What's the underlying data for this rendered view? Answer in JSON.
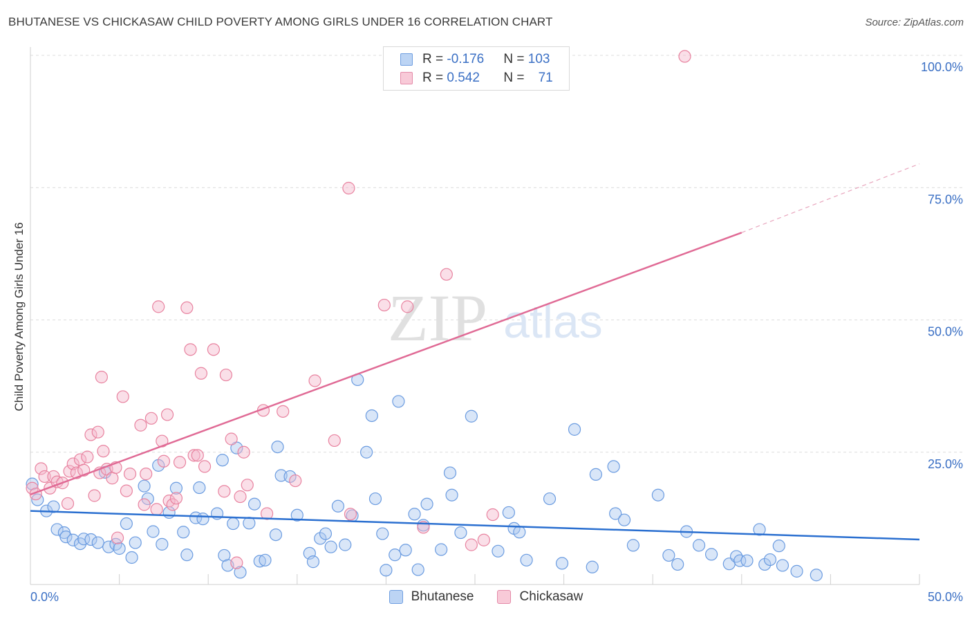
{
  "header": {
    "title": "BHUTANESE VS CHICKASAW CHILD POVERTY AMONG GIRLS UNDER 16 CORRELATION CHART",
    "source": "Source: ZipAtlas.com"
  },
  "legend": {
    "rows": [
      {
        "r_label": "R = ",
        "r_value": "-0.176",
        "n_label": "N = ",
        "n_value": "103"
      },
      {
        "r_label": "R = ",
        "r_value": "0.542",
        "n_label": "N = ",
        "n_value": "71"
      }
    ]
  },
  "bottom_legend": [
    "Bhutanese",
    "Chickasaw"
  ],
  "watermark": {
    "zip": "ZIP",
    "atlas": "atlas"
  },
  "colors": {
    "blue_fill": "#aac8f0",
    "blue_stroke": "#6a9be0",
    "blue_line": "#2a6fd0",
    "pink_fill": "#f5b8cc",
    "pink_stroke": "#e8829f",
    "pink_line": "#e06a95",
    "tick_text": "#3a6fc4"
  },
  "chart_data": {
    "type": "scatter",
    "ylabel": "Child Poverty Among Girls Under 16",
    "x_tick_labels": [
      "0.0%",
      "50.0%"
    ],
    "y_tick_labels": [
      "25.0%",
      "50.0%",
      "75.0%",
      "100.0%"
    ],
    "xlim": [
      0,
      50
    ],
    "ylim": [
      0,
      100
    ],
    "grid": "horizontal-dashed",
    "legend_position": "top-center",
    "series": [
      {
        "name": "Bhutanese",
        "trend": {
          "x0": 0,
          "y0": 13.9,
          "x1": 50,
          "y1": 8.5
        },
        "points": [
          [
            0.1,
            19
          ],
          [
            0.4,
            16
          ],
          [
            0.9,
            13.9
          ],
          [
            1.3,
            14.7
          ],
          [
            1.5,
            10.4
          ],
          [
            1.9,
            9.8
          ],
          [
            2.0,
            9
          ],
          [
            2.4,
            8.4
          ],
          [
            2.8,
            7.7
          ],
          [
            3.0,
            8.6
          ],
          [
            3.4,
            8.5
          ],
          [
            3.8,
            7.9
          ],
          [
            4.4,
            7.1
          ],
          [
            4.8,
            7.6
          ],
          [
            5.0,
            6.8
          ],
          [
            4.2,
            21.2
          ],
          [
            5.4,
            11.5
          ],
          [
            5.7,
            5.1
          ],
          [
            5.9,
            7.9
          ],
          [
            6.4,
            18.6
          ],
          [
            6.6,
            16.2
          ],
          [
            6.9,
            10
          ],
          [
            7.2,
            22.5
          ],
          [
            7.4,
            7.6
          ],
          [
            7.8,
            13.6
          ],
          [
            8.2,
            18.2
          ],
          [
            8.6,
            9.9
          ],
          [
            8.8,
            5.6
          ],
          [
            9.3,
            12.6
          ],
          [
            9.5,
            18.3
          ],
          [
            9.7,
            12.4
          ],
          [
            10.5,
            13.4
          ],
          [
            10.8,
            23.5
          ],
          [
            10.9,
            5.5
          ],
          [
            11.1,
            3.6
          ],
          [
            11.4,
            11.5
          ],
          [
            11.6,
            25.8
          ],
          [
            11.8,
            2.3
          ],
          [
            12.3,
            11.6
          ],
          [
            12.6,
            15.2
          ],
          [
            12.9,
            4.4
          ],
          [
            13.2,
            4.6
          ],
          [
            13.8,
            9.4
          ],
          [
            13.9,
            26
          ],
          [
            14.1,
            20.6
          ],
          [
            14.6,
            20.4
          ],
          [
            15,
            13.1
          ],
          [
            15.7,
            5.9
          ],
          [
            15.9,
            4.3
          ],
          [
            16.3,
            8.7
          ],
          [
            16.6,
            9.6
          ],
          [
            16.9,
            7.1
          ],
          [
            17.3,
            14.8
          ],
          [
            17.7,
            7.5
          ],
          [
            18.1,
            13
          ],
          [
            18.4,
            38.7
          ],
          [
            18.9,
            25
          ],
          [
            19.2,
            31.9
          ],
          [
            19.4,
            16.2
          ],
          [
            19.8,
            9.6
          ],
          [
            20,
            2.7
          ],
          [
            20.5,
            5.6
          ],
          [
            20.7,
            34.6
          ],
          [
            21.1,
            6.5
          ],
          [
            21.6,
            13.3
          ],
          [
            21.8,
            2.8
          ],
          [
            22.1,
            11.2
          ],
          [
            22.3,
            15.2
          ],
          [
            23.1,
            6.6
          ],
          [
            23.6,
            21.1
          ],
          [
            23.7,
            16.9
          ],
          [
            24.2,
            9.8
          ],
          [
            24.8,
            31.8
          ],
          [
            26.3,
            6.3
          ],
          [
            26.9,
            13.6
          ],
          [
            27.2,
            10.6
          ],
          [
            27.5,
            9.9
          ],
          [
            27.9,
            4.6
          ],
          [
            29.2,
            16.2
          ],
          [
            29.9,
            4
          ],
          [
            30.6,
            29.3
          ],
          [
            31.6,
            3.3
          ],
          [
            31.8,
            20.8
          ],
          [
            32.8,
            22.3
          ],
          [
            32.9,
            13.4
          ],
          [
            33.4,
            12.2
          ],
          [
            33.9,
            7.4
          ],
          [
            35.3,
            16.9
          ],
          [
            35.9,
            5.5
          ],
          [
            36.4,
            3.8
          ],
          [
            36.9,
            10
          ],
          [
            37.6,
            7.4
          ],
          [
            38.3,
            5.7
          ],
          [
            39.3,
            3.9
          ],
          [
            39.7,
            5.3
          ],
          [
            39.9,
            4.5
          ],
          [
            40.3,
            4.5
          ],
          [
            41,
            10.4
          ],
          [
            41.3,
            3.8
          ],
          [
            41.6,
            4.7
          ],
          [
            42.1,
            7.3
          ],
          [
            42.3,
            3.6
          ],
          [
            43.1,
            2.5
          ],
          [
            44.2,
            1.8
          ]
        ]
      },
      {
        "name": "Chickasaw",
        "trend": {
          "x0": 0,
          "y0": 17,
          "x1": 40,
          "y1": 66.5,
          "dash_to_x": 50,
          "dash_to_y": 79.5
        },
        "points": [
          [
            0.1,
            18.2
          ],
          [
            0.3,
            17.1
          ],
          [
            0.6,
            21.9
          ],
          [
            0.8,
            20.4
          ],
          [
            1.1,
            18.2
          ],
          [
            1.3,
            20.4
          ],
          [
            1.5,
            19.4
          ],
          [
            1.8,
            19.2
          ],
          [
            2.1,
            15.3
          ],
          [
            2.2,
            21.4
          ],
          [
            2.4,
            22.8
          ],
          [
            2.6,
            21.1
          ],
          [
            2.8,
            23.6
          ],
          [
            3.0,
            21.6
          ],
          [
            3.2,
            24.1
          ],
          [
            3.4,
            28.3
          ],
          [
            3.6,
            16.8
          ],
          [
            3.8,
            28.8
          ],
          [
            3.9,
            21.1
          ],
          [
            4.0,
            39.2
          ],
          [
            4.1,
            25.2
          ],
          [
            4.3,
            21.8
          ],
          [
            4.6,
            20.1
          ],
          [
            4.8,
            22.1
          ],
          [
            4.9,
            8.8
          ],
          [
            5.2,
            35.5
          ],
          [
            5.4,
            17.7
          ],
          [
            5.6,
            20.9
          ],
          [
            6.2,
            30.1
          ],
          [
            6.4,
            15.1
          ],
          [
            6.5,
            20.9
          ],
          [
            6.8,
            31.4
          ],
          [
            7.1,
            14.2
          ],
          [
            7.2,
            52.5
          ],
          [
            7.4,
            27.1
          ],
          [
            7.5,
            23.3
          ],
          [
            7.7,
            32.1
          ],
          [
            7.8,
            15.8
          ],
          [
            8.0,
            15.1
          ],
          [
            8.2,
            16.3
          ],
          [
            8.4,
            23.1
          ],
          [
            8.8,
            52.3
          ],
          [
            9.0,
            44.4
          ],
          [
            9.2,
            24.4
          ],
          [
            9.4,
            24.4
          ],
          [
            9.6,
            39.9
          ],
          [
            9.8,
            22.3
          ],
          [
            10.3,
            44.4
          ],
          [
            10.9,
            17.6
          ],
          [
            11.0,
            39.6
          ],
          [
            11.3,
            27.5
          ],
          [
            11.6,
            4.1
          ],
          [
            11.8,
            16.6
          ],
          [
            12.2,
            18.8
          ],
          [
            13.1,
            32.9
          ],
          [
            13.3,
            13.4
          ],
          [
            14.2,
            32.7
          ],
          [
            14.9,
            19.6
          ],
          [
            16.0,
            38.5
          ],
          [
            17.1,
            27.2
          ],
          [
            17.9,
            74.9
          ],
          [
            18.0,
            13.3
          ],
          [
            19.9,
            52.8
          ],
          [
            21.2,
            52.5
          ],
          [
            22.1,
            10.8
          ],
          [
            23.4,
            58.6
          ],
          [
            24.8,
            7.5
          ],
          [
            25.5,
            8.4
          ],
          [
            26.0,
            13.2
          ],
          [
            12.0,
            25
          ],
          [
            36.8,
            99.8
          ]
        ]
      }
    ]
  }
}
